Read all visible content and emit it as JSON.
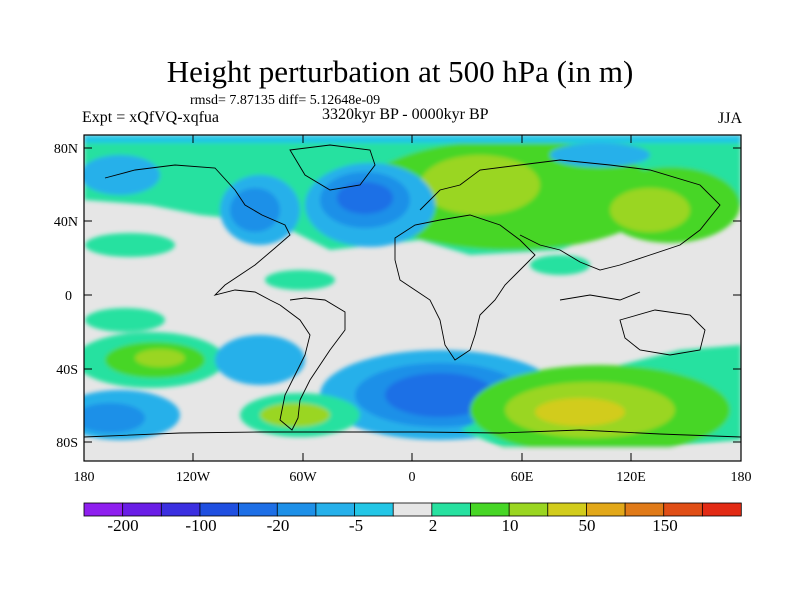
{
  "title": "Height perturbation at 500 hPa (in m)",
  "stats": "rmsd= 7.87135 diff= 5.12648e-09",
  "experiment": "Expt = xQfVQ-xqfua",
  "period": "3320kyr BP - 0000kyr BP",
  "season": "JJA",
  "axes": {
    "y_ticks": [
      "80N",
      "40N",
      "0",
      "40S",
      "80S"
    ],
    "x_ticks": [
      "180",
      "120W",
      "60W",
      "0",
      "60E",
      "120E",
      "180"
    ]
  },
  "colorbar": {
    "colors": [
      "#8f1fef",
      "#6a1ee6",
      "#3b2fe0",
      "#1f4fe0",
      "#1e6fe6",
      "#1e90e8",
      "#26b0ea",
      "#23c6e6",
      "#e6e6e6",
      "#27e1a0",
      "#47d626",
      "#9ad621",
      "#d2cc1c",
      "#e2a819",
      "#e07a18",
      "#e04e16",
      "#e22a14"
    ],
    "labels": [
      "-200",
      "-100",
      "-20",
      "-5",
      "2",
      "10",
      "50",
      "150"
    ]
  },
  "colors": {
    "neutral": "#e6e6e6",
    "coast": "#000000"
  }
}
